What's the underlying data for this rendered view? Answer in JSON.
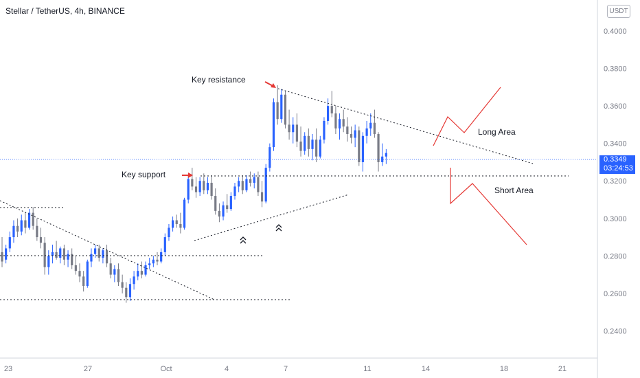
{
  "header": {
    "title": "Stellar / TetherUS, 4h, BINANCE",
    "currency_badge": "USDT"
  },
  "last_price": {
    "price": "0.3349",
    "countdown": "03:24:53"
  },
  "colors": {
    "up": "#2962ff",
    "down": "#787b86",
    "arrow": "#e53935",
    "scenario": "#e53935",
    "dotted": "#131722",
    "axis_text": "#787b86"
  },
  "annotations": {
    "key_resistance": "Key resistance",
    "key_support": "Key support",
    "long_area": "Long Area",
    "short_area": "Short Area"
  },
  "chart_data": {
    "type": "candlestick",
    "title": "Stellar / TetherUS, 4h, BINANCE",
    "ylim": [
      0.2255,
      0.4165
    ],
    "y_ticks": [
      "0.4000",
      "0.3800",
      "0.3600",
      "0.3400",
      "0.3200",
      "0.3000",
      "0.2800",
      "0.2600",
      "0.2400"
    ],
    "x_ticks": [
      "23",
      "27",
      "Oct",
      "4",
      "7",
      "11",
      "14",
      "18",
      "21"
    ],
    "grid": false,
    "last_price": 0.3349,
    "candles": [
      [
        0.282,
        0.29,
        0.274,
        0.277
      ],
      [
        0.278,
        0.286,
        0.276,
        0.284
      ],
      [
        0.284,
        0.293,
        0.282,
        0.29
      ],
      [
        0.29,
        0.299,
        0.287,
        0.296
      ],
      [
        0.296,
        0.3,
        0.29,
        0.293
      ],
      [
        0.293,
        0.302,
        0.291,
        0.299
      ],
      [
        0.299,
        0.303,
        0.292,
        0.295
      ],
      [
        0.295,
        0.305,
        0.294,
        0.303
      ],
      [
        0.303,
        0.306,
        0.294,
        0.296
      ],
      [
        0.296,
        0.3,
        0.288,
        0.29
      ],
      [
        0.29,
        0.295,
        0.284,
        0.287
      ],
      [
        0.287,
        0.29,
        0.27,
        0.274
      ],
      [
        0.274,
        0.283,
        0.27,
        0.28
      ],
      [
        0.28,
        0.286,
        0.276,
        0.282
      ],
      [
        0.282,
        0.288,
        0.278,
        0.279
      ],
      [
        0.279,
        0.285,
        0.276,
        0.284
      ],
      [
        0.284,
        0.286,
        0.275,
        0.278
      ],
      [
        0.278,
        0.283,
        0.274,
        0.281
      ],
      [
        0.281,
        0.284,
        0.273,
        0.275
      ],
      [
        0.275,
        0.28,
        0.27,
        0.272
      ],
      [
        0.272,
        0.276,
        0.266,
        0.269
      ],
      [
        0.269,
        0.272,
        0.261,
        0.264
      ],
      [
        0.264,
        0.278,
        0.263,
        0.277
      ],
      [
        0.277,
        0.284,
        0.274,
        0.281
      ],
      [
        0.281,
        0.286,
        0.279,
        0.284
      ],
      [
        0.284,
        0.286,
        0.277,
        0.279
      ],
      [
        0.279,
        0.284,
        0.276,
        0.283
      ],
      [
        0.283,
        0.286,
        0.274,
        0.276
      ],
      [
        0.276,
        0.279,
        0.268,
        0.27
      ],
      [
        0.27,
        0.275,
        0.266,
        0.273
      ],
      [
        0.273,
        0.276,
        0.264,
        0.266
      ],
      [
        0.266,
        0.27,
        0.26,
        0.263
      ],
      [
        0.263,
        0.266,
        0.255,
        0.258
      ],
      [
        0.258,
        0.268,
        0.256,
        0.265
      ],
      [
        0.265,
        0.272,
        0.262,
        0.269
      ],
      [
        0.269,
        0.276,
        0.267,
        0.272
      ],
      [
        0.272,
        0.277,
        0.268,
        0.27
      ],
      [
        0.27,
        0.277,
        0.269,
        0.275
      ],
      [
        0.275,
        0.279,
        0.273,
        0.276
      ],
      [
        0.276,
        0.28,
        0.274,
        0.278
      ],
      [
        0.278,
        0.282,
        0.275,
        0.277
      ],
      [
        0.277,
        0.284,
        0.276,
        0.282
      ],
      [
        0.282,
        0.292,
        0.28,
        0.29
      ],
      [
        0.29,
        0.297,
        0.288,
        0.295
      ],
      [
        0.295,
        0.301,
        0.293,
        0.299
      ],
      [
        0.299,
        0.302,
        0.295,
        0.297
      ],
      [
        0.297,
        0.303,
        0.292,
        0.295
      ],
      [
        0.295,
        0.311,
        0.294,
        0.31
      ],
      [
        0.31,
        0.323,
        0.308,
        0.321
      ],
      [
        0.321,
        0.327,
        0.315,
        0.317
      ],
      [
        0.317,
        0.322,
        0.311,
        0.314
      ],
      [
        0.314,
        0.322,
        0.312,
        0.32
      ],
      [
        0.32,
        0.324,
        0.313,
        0.315
      ],
      [
        0.315,
        0.322,
        0.313,
        0.319
      ],
      [
        0.319,
        0.323,
        0.31,
        0.312
      ],
      [
        0.312,
        0.316,
        0.302,
        0.304
      ],
      [
        0.304,
        0.308,
        0.298,
        0.301
      ],
      [
        0.301,
        0.309,
        0.299,
        0.307
      ],
      [
        0.307,
        0.313,
        0.303,
        0.305
      ],
      [
        0.305,
        0.314,
        0.304,
        0.312
      ],
      [
        0.312,
        0.319,
        0.31,
        0.317
      ],
      [
        0.317,
        0.322,
        0.314,
        0.32
      ],
      [
        0.32,
        0.323,
        0.313,
        0.315
      ],
      [
        0.315,
        0.323,
        0.314,
        0.321
      ],
      [
        0.321,
        0.325,
        0.317,
        0.319
      ],
      [
        0.319,
        0.324,
        0.316,
        0.322
      ],
      [
        0.322,
        0.325,
        0.312,
        0.314
      ],
      [
        0.314,
        0.32,
        0.306,
        0.309
      ],
      [
        0.309,
        0.329,
        0.308,
        0.327
      ],
      [
        0.327,
        0.34,
        0.325,
        0.338
      ],
      [
        0.338,
        0.364,
        0.336,
        0.362
      ],
      [
        0.362,
        0.371,
        0.35,
        0.353
      ],
      [
        0.353,
        0.369,
        0.351,
        0.366
      ],
      [
        0.366,
        0.368,
        0.348,
        0.35
      ],
      [
        0.35,
        0.358,
        0.342,
        0.346
      ],
      [
        0.346,
        0.354,
        0.34,
        0.35
      ],
      [
        0.35,
        0.356,
        0.338,
        0.341
      ],
      [
        0.341,
        0.349,
        0.333,
        0.336
      ],
      [
        0.336,
        0.346,
        0.334,
        0.344
      ],
      [
        0.344,
        0.348,
        0.333,
        0.337
      ],
      [
        0.337,
        0.345,
        0.331,
        0.342
      ],
      [
        0.342,
        0.348,
        0.33,
        0.333
      ],
      [
        0.333,
        0.344,
        0.332,
        0.342
      ],
      [
        0.342,
        0.354,
        0.34,
        0.352
      ],
      [
        0.352,
        0.364,
        0.35,
        0.36
      ],
      [
        0.36,
        0.368,
        0.354,
        0.356
      ],
      [
        0.356,
        0.36,
        0.345,
        0.348
      ],
      [
        0.348,
        0.356,
        0.342,
        0.353
      ],
      [
        0.353,
        0.358,
        0.346,
        0.349
      ],
      [
        0.349,
        0.354,
        0.341,
        0.345
      ],
      [
        0.345,
        0.349,
        0.34,
        0.343
      ],
      [
        0.343,
        0.35,
        0.338,
        0.347
      ],
      [
        0.347,
        0.349,
        0.328,
        0.33
      ],
      [
        0.33,
        0.346,
        0.325,
        0.344
      ],
      [
        0.344,
        0.352,
        0.34,
        0.348
      ],
      [
        0.348,
        0.356,
        0.344,
        0.351
      ],
      [
        0.351,
        0.358,
        0.343,
        0.345
      ],
      [
        0.345,
        0.346,
        0.325,
        0.33
      ],
      [
        0.33,
        0.34,
        0.328,
        0.333
      ],
      [
        0.333,
        0.337,
        0.329,
        0.3349
      ]
    ]
  }
}
